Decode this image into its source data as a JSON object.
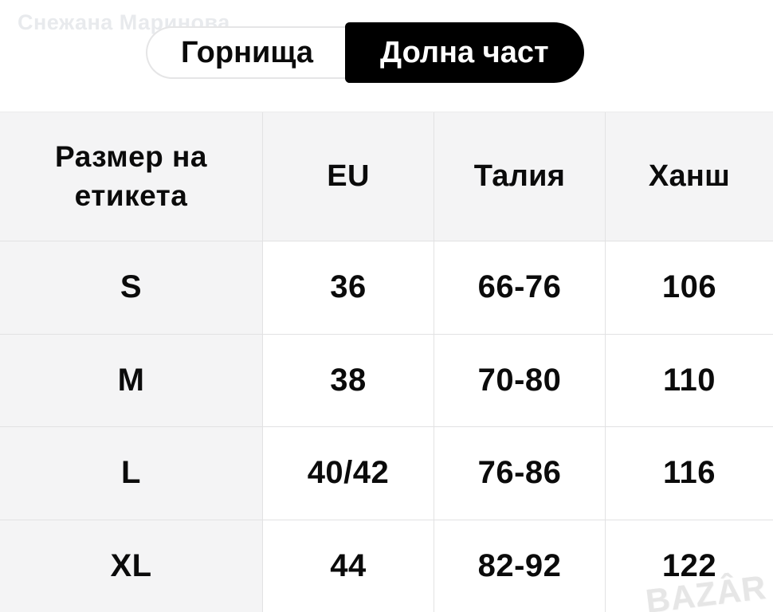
{
  "watermarks": {
    "owner": "Снежана Маринова",
    "brand": "BAZÂR"
  },
  "tabs": {
    "tops_label": "Горнища",
    "bottoms_label": "Долна част",
    "active_tab": "Долна част"
  },
  "size_table": {
    "columns": [
      "Размер на етикета",
      "EU",
      "Талия",
      "Ханш"
    ],
    "rows": [
      {
        "label": "S",
        "eu": "36",
        "waist": "66-76",
        "hips": "106"
      },
      {
        "label": "M",
        "eu": "38",
        "waist": "70-80",
        "hips": "110"
      },
      {
        "label": "L",
        "eu": "40/42",
        "waist": "76-86",
        "hips": "116"
      },
      {
        "label": "XL",
        "eu": "44",
        "waist": "82-92",
        "hips": "122"
      }
    ]
  },
  "colors": {
    "active_pill": "#000000",
    "cell_gray": "#f4f4f5",
    "grid_line": "#e2e2e3"
  }
}
